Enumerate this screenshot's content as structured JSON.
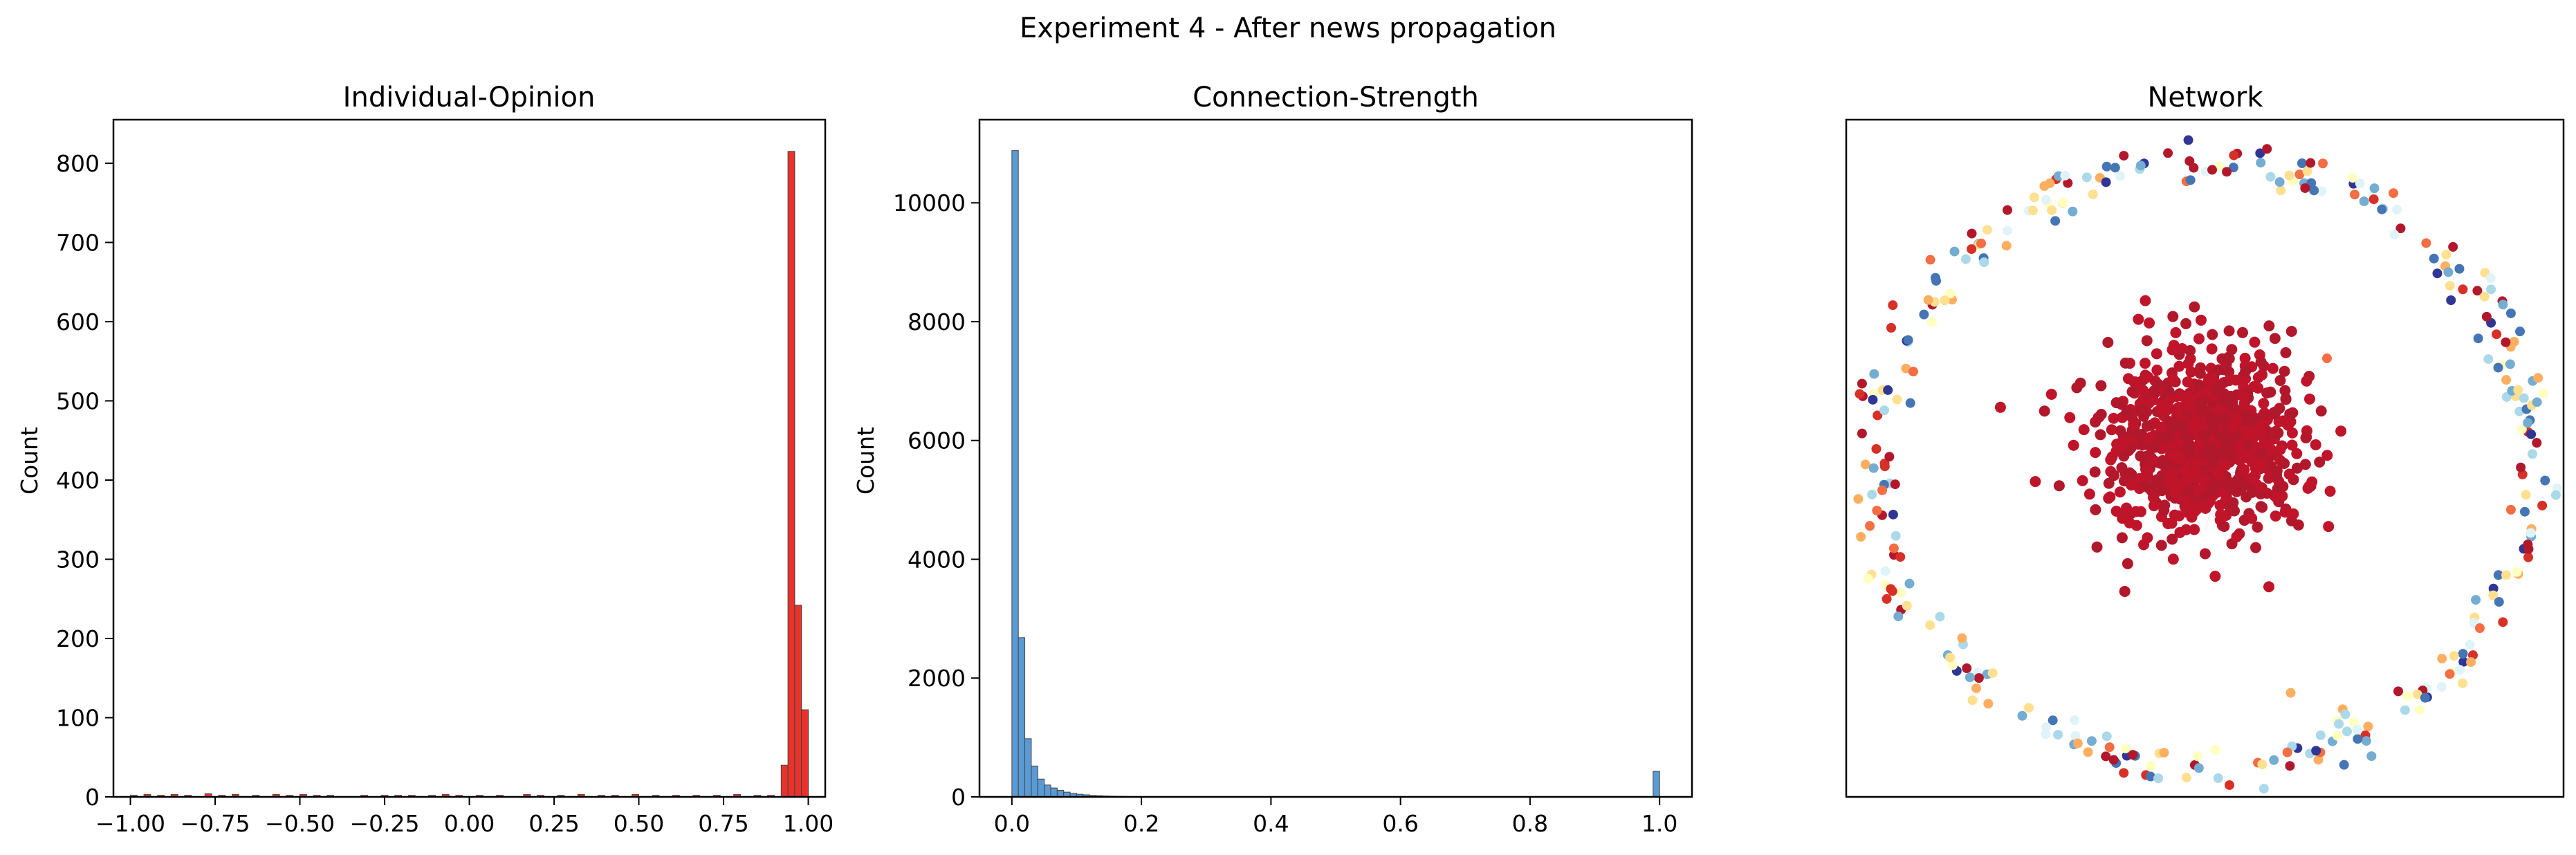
{
  "figure": {
    "suptitle": "Experiment 4 - After news propagation"
  },
  "chart_data": [
    {
      "type": "bar",
      "subtype": "histogram",
      "title": "Individual-Opinion",
      "xlabel": "",
      "ylabel": "Count",
      "xlim": [
        -1.05,
        1.05
      ],
      "ylim": [
        0,
        855
      ],
      "xticks": [
        -1.0,
        -0.75,
        -0.5,
        -0.25,
        0.0,
        0.25,
        0.5,
        0.75,
        1.0
      ],
      "xtick_labels": [
        "−1.00",
        "−0.75",
        "−0.50",
        "−0.25",
        "0.00",
        "0.25",
        "0.50",
        "0.75",
        "1.00"
      ],
      "yticks": [
        0,
        100,
        200,
        300,
        400,
        500,
        600,
        700,
        800
      ],
      "ytick_labels": [
        "0",
        "100",
        "200",
        "300",
        "400",
        "500",
        "600",
        "700",
        "800"
      ],
      "bar_color": "#e8322b",
      "edge_color": "#444444",
      "bin_width": 0.02,
      "bins": [
        {
          "x": -0.99,
          "count": 2
        },
        {
          "x": -0.95,
          "count": 3
        },
        {
          "x": -0.91,
          "count": 2
        },
        {
          "x": -0.87,
          "count": 3
        },
        {
          "x": -0.83,
          "count": 2
        },
        {
          "x": -0.77,
          "count": 4
        },
        {
          "x": -0.73,
          "count": 2
        },
        {
          "x": -0.69,
          "count": 3
        },
        {
          "x": -0.63,
          "count": 2
        },
        {
          "x": -0.57,
          "count": 3
        },
        {
          "x": -0.53,
          "count": 2
        },
        {
          "x": -0.49,
          "count": 3
        },
        {
          "x": -0.45,
          "count": 2
        },
        {
          "x": -0.41,
          "count": 2
        },
        {
          "x": -0.31,
          "count": 2
        },
        {
          "x": -0.25,
          "count": 2
        },
        {
          "x": -0.21,
          "count": 2
        },
        {
          "x": -0.17,
          "count": 2
        },
        {
          "x": -0.11,
          "count": 2
        },
        {
          "x": -0.07,
          "count": 3
        },
        {
          "x": -0.03,
          "count": 2
        },
        {
          "x": 0.03,
          "count": 2
        },
        {
          "x": 0.09,
          "count": 2
        },
        {
          "x": 0.17,
          "count": 3
        },
        {
          "x": 0.21,
          "count": 2
        },
        {
          "x": 0.27,
          "count": 2
        },
        {
          "x": 0.33,
          "count": 3
        },
        {
          "x": 0.39,
          "count": 2
        },
        {
          "x": 0.43,
          "count": 2
        },
        {
          "x": 0.49,
          "count": 3
        },
        {
          "x": 0.55,
          "count": 2
        },
        {
          "x": 0.61,
          "count": 2
        },
        {
          "x": 0.67,
          "count": 2
        },
        {
          "x": 0.73,
          "count": 2
        },
        {
          "x": 0.79,
          "count": 3
        },
        {
          "x": 0.85,
          "count": 2
        },
        {
          "x": 0.89,
          "count": 2
        },
        {
          "x": 0.93,
          "count": 40
        },
        {
          "x": 0.95,
          "count": 815
        },
        {
          "x": 0.97,
          "count": 242
        },
        {
          "x": 0.99,
          "count": 110
        }
      ]
    },
    {
      "type": "bar",
      "subtype": "histogram",
      "title": "Connection-Strength",
      "xlabel": "",
      "ylabel": "Count",
      "xlim": [
        -0.05,
        1.05
      ],
      "ylim": [
        0,
        11400
      ],
      "xticks": [
        0.0,
        0.2,
        0.4,
        0.6,
        0.8,
        1.0
      ],
      "xtick_labels": [
        "0.0",
        "0.2",
        "0.4",
        "0.6",
        "0.8",
        "1.0"
      ],
      "yticks": [
        0,
        2000,
        4000,
        6000,
        8000,
        10000
      ],
      "ytick_labels": [
        "0",
        "2000",
        "4000",
        "6000",
        "8000",
        "10000"
      ],
      "bar_color": "#5b9bd5",
      "edge_color": "#444444",
      "bin_width": 0.01,
      "bins": [
        {
          "x": 0.005,
          "count": 10880
        },
        {
          "x": 0.015,
          "count": 2680
        },
        {
          "x": 0.025,
          "count": 980
        },
        {
          "x": 0.035,
          "count": 520
        },
        {
          "x": 0.045,
          "count": 300
        },
        {
          "x": 0.055,
          "count": 200
        },
        {
          "x": 0.065,
          "count": 150
        },
        {
          "x": 0.075,
          "count": 110
        },
        {
          "x": 0.085,
          "count": 80
        },
        {
          "x": 0.095,
          "count": 60
        },
        {
          "x": 0.105,
          "count": 45
        },
        {
          "x": 0.115,
          "count": 35
        },
        {
          "x": 0.125,
          "count": 25
        },
        {
          "x": 0.135,
          "count": 20
        },
        {
          "x": 0.145,
          "count": 15
        },
        {
          "x": 0.155,
          "count": 12
        },
        {
          "x": 0.165,
          "count": 10
        },
        {
          "x": 0.175,
          "count": 8
        },
        {
          "x": 0.185,
          "count": 6
        },
        {
          "x": 0.195,
          "count": 5
        },
        {
          "x": 0.205,
          "count": 4
        },
        {
          "x": 0.215,
          "count": 3
        },
        {
          "x": 0.225,
          "count": 3
        },
        {
          "x": 0.995,
          "count": 430
        }
      ]
    },
    {
      "type": "scatter",
      "subtype": "network-graph",
      "title": "Network",
      "xlabel": "",
      "ylabel": "",
      "xticks": [],
      "yticks": [],
      "description": "Dense cluster of red-colored nodes in the center, ring of isolated multicolored nodes around it",
      "cluster": {
        "color": "#b2182b",
        "node_count": 900
      },
      "ring": {
        "node_count": 330,
        "palette": [
          "#b2182b",
          "#d73027",
          "#f46d43",
          "#fdae61",
          "#fee090",
          "#ffffbf",
          "#e0f3f8",
          "#abd9e9",
          "#74add1",
          "#4575b4",
          "#313695"
        ]
      },
      "outliers": [
        {
          "x": 0.37,
          "y": -0.35,
          "color": "#f46d43"
        },
        {
          "x": 0.26,
          "y": 0.76,
          "color": "#fdae61"
        }
      ]
    }
  ]
}
